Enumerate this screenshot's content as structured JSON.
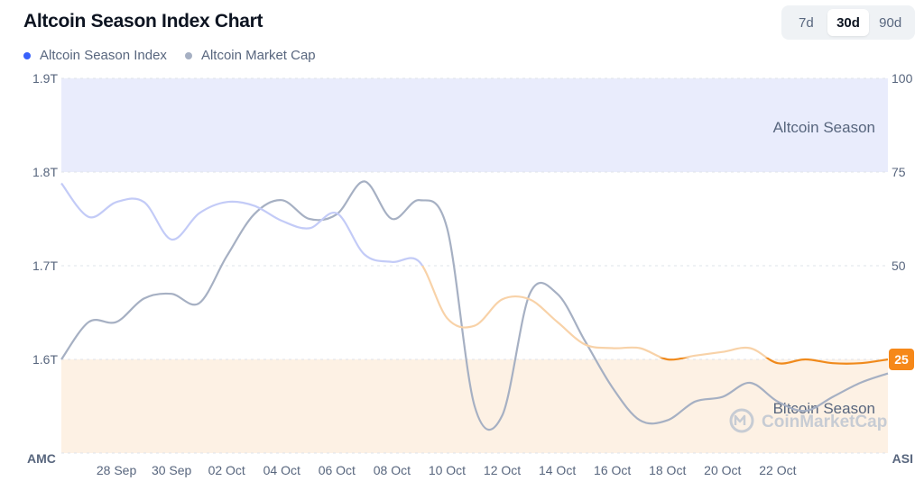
{
  "header": {
    "title": "Altcoin Season Index Chart"
  },
  "periods": [
    {
      "label": "7d",
      "active": false
    },
    {
      "label": "30d",
      "active": true
    },
    {
      "label": "90d",
      "active": false
    }
  ],
  "legend": [
    {
      "label": "Altcoin Season Index",
      "color": "#3861fb"
    },
    {
      "label": "Altcoin Market Cap",
      "color": "#a6b0c3"
    }
  ],
  "watermark": "CoinMarketCap",
  "current_badge": "25",
  "chart_data": {
    "type": "line",
    "x_ticks": [
      "28 Sep",
      "30 Sep",
      "02 Oct",
      "04 Oct",
      "06 Oct",
      "08 Oct",
      "10 Oct",
      "12 Oct",
      "14 Oct",
      "16 Oct",
      "18 Oct",
      "20 Oct",
      "22 Oct"
    ],
    "y_left": {
      "label": "AMC",
      "ticks": [
        "1.9T",
        "1.8T",
        "1.7T",
        "1.6T"
      ],
      "ylim": [
        1.5,
        1.9
      ],
      "unit": "T"
    },
    "y_right": {
      "label": "ASI",
      "ticks": [
        "100",
        "75",
        "50",
        "25"
      ],
      "ylim": [
        0,
        100
      ]
    },
    "zones": [
      {
        "label": "Altcoin Season",
        "from": 75,
        "to": 100,
        "color": "#e9ecfc"
      },
      {
        "label": "Bitcoin Season",
        "from": 0,
        "to": 25,
        "color": "#fdf1e4"
      }
    ],
    "series": [
      {
        "name": "Altcoin Season Index",
        "axis": "right",
        "x": [
          0,
          1,
          2,
          3,
          4,
          5,
          6,
          7,
          8,
          9,
          10,
          11,
          12,
          13,
          14,
          15,
          16,
          17,
          18,
          19,
          20,
          21,
          22,
          23,
          24,
          25,
          26,
          27,
          28,
          29,
          30
        ],
        "values": [
          72,
          63,
          67,
          67,
          57,
          64,
          67,
          66,
          62,
          60,
          64,
          53,
          51,
          51,
          36,
          34,
          41,
          41,
          35,
          29,
          28,
          28,
          25,
          26,
          27,
          28,
          24,
          25,
          24,
          24,
          25
        ]
      },
      {
        "name": "Altcoin Market Cap",
        "axis": "left",
        "x": [
          0,
          1,
          2,
          3,
          4,
          5,
          6,
          7,
          8,
          9,
          10,
          11,
          12,
          13,
          14,
          15,
          16,
          17,
          18,
          19,
          20,
          21,
          22,
          23,
          24,
          25,
          26,
          27,
          28,
          29,
          30
        ],
        "values": [
          1.6,
          1.64,
          1.64,
          1.665,
          1.67,
          1.66,
          1.71,
          1.755,
          1.77,
          1.75,
          1.755,
          1.79,
          1.75,
          1.77,
          1.74,
          1.55,
          1.54,
          1.67,
          1.67,
          1.62,
          1.57,
          1.535,
          1.535,
          1.555,
          1.56,
          1.575,
          1.555,
          1.545,
          1.56,
          1.575,
          1.585
        ]
      }
    ],
    "current_value": 25,
    "grid": true
  }
}
